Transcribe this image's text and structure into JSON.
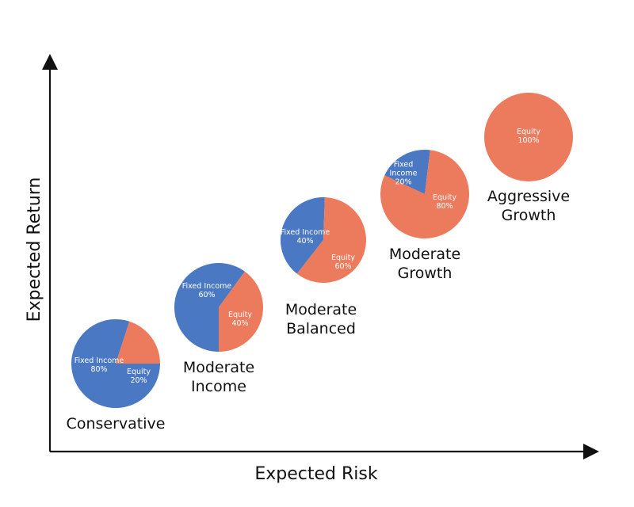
{
  "chart_data": {
    "type": "pie",
    "xlabel": "Expected Risk",
    "ylabel": "Expected Return",
    "colors": {
      "Fixed Income": "#4a78c2",
      "Equity": "#ec7a5c"
    },
    "pies": [
      {
        "name": [
          "Conservative"
        ],
        "slices": [
          {
            "label": "Fixed Income",
            "value": 80,
            "text": [
              "Fixed Income",
              "80%"
            ]
          },
          {
            "label": "Equity",
            "value": 20,
            "text": [
              "Equity",
              "20%"
            ]
          }
        ]
      },
      {
        "name": [
          "Moderate",
          "Income"
        ],
        "slices": [
          {
            "label": "Fixed Income",
            "value": 60,
            "text": [
              "Fixed Income",
              "60%"
            ]
          },
          {
            "label": "Equity",
            "value": 40,
            "text": [
              "Equity",
              "40%"
            ]
          }
        ]
      },
      {
        "name": [
          "Moderate",
          "Balanced"
        ],
        "slices": [
          {
            "label": "Fixed Income",
            "value": 40,
            "text": [
              "Fixed Income",
              "40%"
            ]
          },
          {
            "label": "Equity",
            "value": 60,
            "text": [
              "Equity",
              "60%"
            ]
          }
        ]
      },
      {
        "name": [
          "Moderate",
          "Growth"
        ],
        "slices": [
          {
            "label": "Fixed Income",
            "value": 20,
            "text": [
              "Fixed",
              "Income",
              "20%"
            ]
          },
          {
            "label": "Equity",
            "value": 80,
            "text": [
              "Equity",
              "80%"
            ]
          }
        ]
      },
      {
        "name": [
          "Aggressive",
          "Growth"
        ],
        "slices": [
          {
            "label": "Equity",
            "value": 100,
            "text": [
              "Equity",
              "100%"
            ]
          }
        ]
      }
    ]
  }
}
